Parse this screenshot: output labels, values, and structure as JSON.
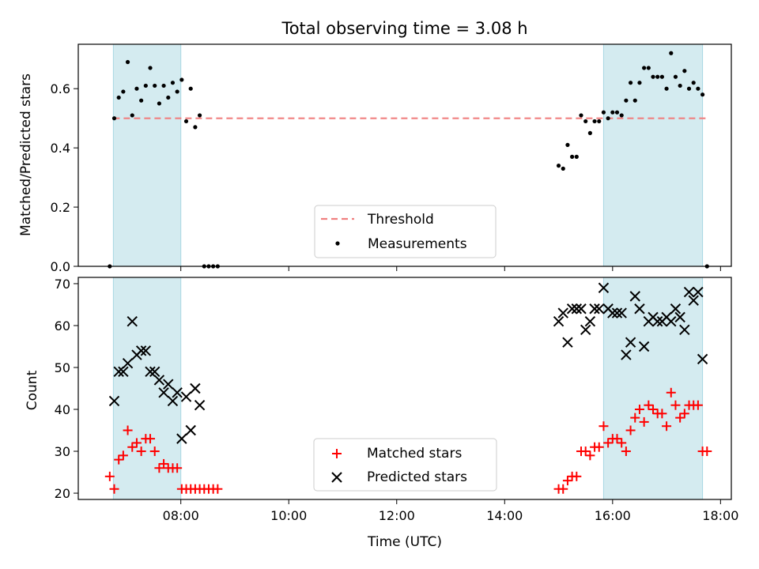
{
  "title": "Total observing time = 3.08 h",
  "chart_data": [
    {
      "type": "scatter",
      "ylabel": "Matched/Predicted stars",
      "ylim": [
        0,
        0.75
      ],
      "xlim": [
        "06:06",
        "18:12"
      ],
      "x_ticks": [
        "08:00",
        "10:00",
        "12:00",
        "14:00",
        "16:00",
        "18:00"
      ],
      "y_ticks": [
        {
          "value": 0.0,
          "label": "0.0"
        },
        {
          "value": 0.2,
          "label": "0.2"
        },
        {
          "value": 0.4,
          "label": "0.4"
        },
        {
          "value": 0.6,
          "label": "0.6"
        }
      ],
      "shaded_intervals": [
        [
          "06:45",
          "08:00"
        ],
        [
          "15:50",
          "17:40"
        ]
      ],
      "threshold": {
        "name": "Threshold",
        "value": 0.5,
        "x_range": [
          "06:45",
          "17:45"
        ],
        "color": "#f08080"
      },
      "measurements": {
        "name": "Measurements",
        "color": "#000000",
        "points": [
          [
            "06:41",
            0.0
          ],
          [
            "06:46",
            0.5
          ],
          [
            "06:51",
            0.57
          ],
          [
            "06:56",
            0.59
          ],
          [
            "07:01",
            0.69
          ],
          [
            "07:06",
            0.51
          ],
          [
            "07:11",
            0.6
          ],
          [
            "07:16",
            0.56
          ],
          [
            "07:21",
            0.61
          ],
          [
            "07:26",
            0.67
          ],
          [
            "07:31",
            0.61
          ],
          [
            "07:36",
            0.55
          ],
          [
            "07:41",
            0.61
          ],
          [
            "07:46",
            0.57
          ],
          [
            "07:51",
            0.62
          ],
          [
            "07:56",
            0.59
          ],
          [
            "08:01",
            0.63
          ],
          [
            "08:06",
            0.49
          ],
          [
            "08:11",
            0.6
          ],
          [
            "08:16",
            0.47
          ],
          [
            "08:21",
            0.51
          ],
          [
            "08:26",
            0.0
          ],
          [
            "08:31",
            0.0
          ],
          [
            "08:36",
            0.0
          ],
          [
            "08:41",
            0.0
          ],
          [
            "15:00",
            0.34
          ],
          [
            "15:05",
            0.33
          ],
          [
            "15:10",
            0.41
          ],
          [
            "15:15",
            0.37
          ],
          [
            "15:20",
            0.37
          ],
          [
            "15:25",
            0.51
          ],
          [
            "15:30",
            0.49
          ],
          [
            "15:35",
            0.45
          ],
          [
            "15:40",
            0.49
          ],
          [
            "15:45",
            0.49
          ],
          [
            "15:50",
            0.52
          ],
          [
            "15:55",
            0.5
          ],
          [
            "16:00",
            0.52
          ],
          [
            "16:05",
            0.52
          ],
          [
            "16:10",
            0.51
          ],
          [
            "16:15",
            0.56
          ],
          [
            "16:20",
            0.62
          ],
          [
            "16:25",
            0.56
          ],
          [
            "16:30",
            0.62
          ],
          [
            "16:35",
            0.67
          ],
          [
            "16:40",
            0.67
          ],
          [
            "16:45",
            0.64
          ],
          [
            "16:50",
            0.64
          ],
          [
            "16:55",
            0.64
          ],
          [
            "17:00",
            0.6
          ],
          [
            "17:05",
            0.72
          ],
          [
            "17:10",
            0.64
          ],
          [
            "17:15",
            0.61
          ],
          [
            "17:20",
            0.66
          ],
          [
            "17:25",
            0.6
          ],
          [
            "17:30",
            0.62
          ],
          [
            "17:35",
            0.6
          ],
          [
            "17:40",
            0.58
          ],
          [
            "17:45",
            0.0
          ]
        ]
      },
      "legend": {
        "placement": "bottom-center",
        "entries": [
          "Threshold",
          "Measurements"
        ]
      }
    },
    {
      "type": "scatter",
      "xlabel": "Time (UTC)",
      "ylabel": "Count",
      "ylim": [
        18.5,
        71.5
      ],
      "xlim": [
        "06:06",
        "18:12"
      ],
      "x_ticks": [
        "08:00",
        "10:00",
        "12:00",
        "14:00",
        "16:00",
        "18:00"
      ],
      "y_ticks": [
        {
          "value": 20,
          "label": "20"
        },
        {
          "value": 30,
          "label": "30"
        },
        {
          "value": 40,
          "label": "40"
        },
        {
          "value": 50,
          "label": "50"
        },
        {
          "value": 60,
          "label": "60"
        },
        {
          "value": 70,
          "label": "70"
        }
      ],
      "shaded_intervals": [
        [
          "06:45",
          "08:00"
        ],
        [
          "15:50",
          "17:40"
        ]
      ],
      "series": [
        {
          "name": "Matched stars",
          "marker": "plus",
          "color": "#ff0000",
          "points": [
            [
              "06:41",
              24
            ],
            [
              "06:46",
              21
            ],
            [
              "06:51",
              28
            ],
            [
              "06:56",
              29
            ],
            [
              "07:01",
              35
            ],
            [
              "07:06",
              31
            ],
            [
              "07:11",
              32
            ],
            [
              "07:16",
              30
            ],
            [
              "07:21",
              33
            ],
            [
              "07:26",
              33
            ],
            [
              "07:31",
              30
            ],
            [
              "07:36",
              26
            ],
            [
              "07:41",
              27
            ],
            [
              "07:46",
              26
            ],
            [
              "07:51",
              26
            ],
            [
              "07:56",
              26
            ],
            [
              "08:01",
              21
            ],
            [
              "08:06",
              21
            ],
            [
              "08:11",
              21
            ],
            [
              "08:16",
              21
            ],
            [
              "08:21",
              21
            ],
            [
              "08:26",
              21
            ],
            [
              "08:31",
              21
            ],
            [
              "08:36",
              21
            ],
            [
              "08:41",
              21
            ],
            [
              "15:00",
              21
            ],
            [
              "15:05",
              21
            ],
            [
              "15:10",
              23
            ],
            [
              "15:15",
              24
            ],
            [
              "15:20",
              24
            ],
            [
              "15:25",
              30
            ],
            [
              "15:30",
              30
            ],
            [
              "15:35",
              29
            ],
            [
              "15:40",
              31
            ],
            [
              "15:45",
              31
            ],
            [
              "15:50",
              36
            ],
            [
              "15:55",
              32
            ],
            [
              "16:00",
              33
            ],
            [
              "16:05",
              33
            ],
            [
              "16:10",
              32
            ],
            [
              "16:15",
              30
            ],
            [
              "16:20",
              35
            ],
            [
              "16:25",
              38
            ],
            [
              "16:30",
              40
            ],
            [
              "16:35",
              37
            ],
            [
              "16:40",
              41
            ],
            [
              "16:45",
              40
            ],
            [
              "16:50",
              39
            ],
            [
              "16:55",
              39
            ],
            [
              "17:00",
              36
            ],
            [
              "17:05",
              44
            ],
            [
              "17:10",
              41
            ],
            [
              "17:15",
              38
            ],
            [
              "17:20",
              39
            ],
            [
              "17:25",
              41
            ],
            [
              "17:30",
              41
            ],
            [
              "17:35",
              41
            ],
            [
              "17:40",
              30
            ],
            [
              "17:45",
              30
            ]
          ]
        },
        {
          "name": "Predicted stars",
          "marker": "x",
          "color": "#000000",
          "points": [
            [
              "06:46",
              42
            ],
            [
              "06:51",
              49
            ],
            [
              "06:56",
              49
            ],
            [
              "07:01",
              51
            ],
            [
              "07:06",
              61
            ],
            [
              "07:11",
              53
            ],
            [
              "07:16",
              54
            ],
            [
              "07:21",
              54
            ],
            [
              "07:26",
              49
            ],
            [
              "07:31",
              49
            ],
            [
              "07:36",
              47
            ],
            [
              "07:41",
              44
            ],
            [
              "07:46",
              46
            ],
            [
              "07:51",
              42
            ],
            [
              "07:56",
              44
            ],
            [
              "08:01",
              33
            ],
            [
              "08:06",
              43
            ],
            [
              "08:11",
              35
            ],
            [
              "08:16",
              45
            ],
            [
              "08:21",
              41
            ],
            [
              "15:00",
              61
            ],
            [
              "15:05",
              63
            ],
            [
              "15:10",
              56
            ],
            [
              "15:15",
              64
            ],
            [
              "15:20",
              64
            ],
            [
              "15:25",
              64
            ],
            [
              "15:30",
              59
            ],
            [
              "15:35",
              61
            ],
            [
              "15:40",
              64
            ],
            [
              "15:45",
              64
            ],
            [
              "15:50",
              69
            ],
            [
              "15:55",
              64
            ],
            [
              "16:00",
              63
            ],
            [
              "16:05",
              63
            ],
            [
              "16:10",
              63
            ],
            [
              "16:15",
              53
            ],
            [
              "16:20",
              56
            ],
            [
              "16:25",
              67
            ],
            [
              "16:30",
              64
            ],
            [
              "16:35",
              55
            ],
            [
              "16:40",
              61
            ],
            [
              "16:45",
              62
            ],
            [
              "16:50",
              61
            ],
            [
              "16:55",
              61
            ],
            [
              "17:00",
              62
            ],
            [
              "17:05",
              61
            ],
            [
              "17:10",
              64
            ],
            [
              "17:15",
              62
            ],
            [
              "17:20",
              59
            ],
            [
              "17:25",
              68
            ],
            [
              "17:30",
              66
            ],
            [
              "17:35",
              68
            ],
            [
              "17:40",
              52
            ]
          ]
        }
      ],
      "legend": {
        "placement": "bottom-center",
        "entries": [
          "Matched stars",
          "Predicted stars"
        ]
      }
    }
  ],
  "colors": {
    "shade": "#d4ebf0",
    "shade_edge": "#a8d7e2",
    "axes": "#000000"
  }
}
